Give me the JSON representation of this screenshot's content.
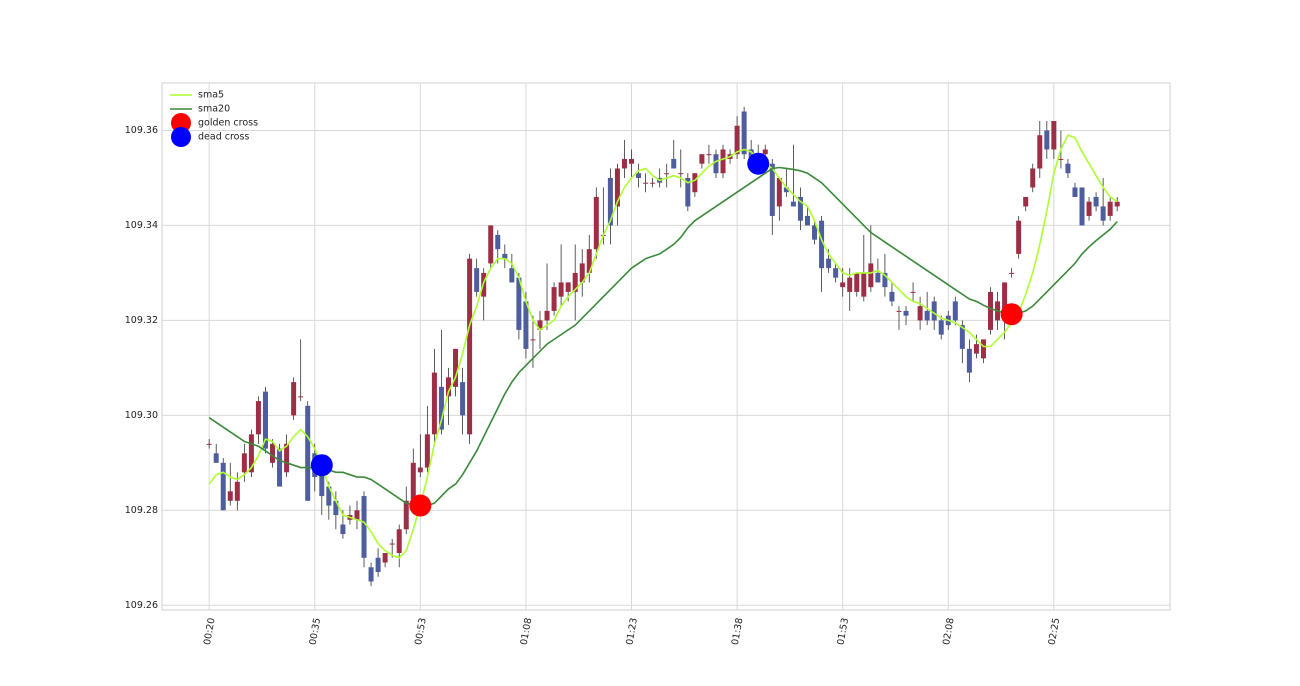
{
  "chart_data": {
    "type": "candlestick",
    "categories": [
      "00:20",
      null,
      null,
      null,
      null,
      null,
      null,
      null,
      null,
      null,
      null,
      null,
      null,
      null,
      null,
      "00:35",
      null,
      null,
      null,
      null,
      null,
      null,
      null,
      null,
      null,
      null,
      null,
      null,
      null,
      null,
      "00:53",
      null,
      null,
      null,
      null,
      null,
      null,
      null,
      null,
      null,
      null,
      null,
      null,
      null,
      null,
      "01:08",
      null,
      null,
      null,
      null,
      null,
      null,
      null,
      null,
      null,
      null,
      null,
      null,
      null,
      null,
      "01:23",
      null,
      null,
      null,
      null,
      null,
      null,
      null,
      null,
      null,
      null,
      null,
      null,
      null,
      null,
      "01:38",
      null,
      null,
      null,
      null,
      null,
      null,
      null,
      null,
      null,
      null,
      null,
      null,
      null,
      null,
      "01:53",
      null,
      null,
      null,
      null,
      null,
      null,
      null,
      null,
      null,
      null,
      null,
      null,
      null,
      null,
      "02:08",
      null,
      null,
      null,
      null,
      null,
      null,
      null,
      null,
      null,
      null,
      null,
      null,
      null,
      null,
      "02:25",
      null,
      null,
      null,
      null,
      null,
      null,
      null,
      null,
      null
    ],
    "ohlc": {
      "open": [
        109.294,
        109.292,
        109.29,
        109.282,
        109.282,
        109.288,
        109.288,
        109.296,
        109.305,
        109.29,
        109.293,
        109.288,
        109.3,
        109.304,
        109.302,
        109.292,
        109.29,
        109.285,
        109.282,
        109.277,
        109.278,
        109.278,
        109.283,
        109.268,
        109.27,
        109.269,
        109.273,
        109.271,
        109.276,
        109.282,
        109.288,
        109.289,
        109.296,
        109.306,
        109.304,
        109.306,
        109.307,
        109.296,
        109.331,
        109.325,
        109.332,
        109.338,
        109.334,
        109.331,
        109.329,
        109.324,
        109.316,
        109.318,
        109.32,
        109.322,
        109.325,
        109.326,
        109.326,
        109.328,
        109.33,
        109.335,
        109.338,
        109.35,
        109.344,
        109.352,
        109.353,
        109.351,
        109.349,
        109.349,
        109.35,
        109.351,
        109.354,
        109.351,
        109.35,
        109.347,
        109.353,
        109.355,
        109.355,
        109.351,
        109.354,
        109.355,
        109.364,
        109.356,
        109.355,
        109.355,
        109.353,
        109.344,
        109.348,
        109.345,
        109.346,
        109.342,
        109.34,
        109.341,
        109.333,
        109.331,
        109.327,
        109.326,
        109.326,
        109.325,
        109.327,
        109.33,
        109.33,
        109.326,
        109.322,
        109.322,
        109.326,
        109.32,
        109.322,
        109.324,
        109.32,
        109.321,
        109.324,
        109.319,
        109.314,
        109.313,
        109.312,
        109.318,
        109.32,
        109.32,
        109.33,
        109.334,
        109.344,
        109.348,
        109.352,
        109.36,
        109.356,
        109.354,
        109.353,
        109.348,
        109.348,
        109.342,
        109.346,
        109.344,
        109.342,
        109.344
      ],
      "high": [
        109.295,
        109.294,
        109.291,
        109.29,
        109.288,
        109.294,
        109.297,
        109.304,
        109.306,
        109.295,
        109.294,
        109.296,
        109.308,
        109.316,
        109.303,
        109.294,
        109.291,
        109.286,
        109.284,
        109.28,
        109.281,
        109.282,
        109.284,
        109.269,
        109.272,
        109.271,
        109.274,
        109.277,
        109.285,
        109.293,
        109.296,
        109.302,
        109.314,
        109.318,
        109.31,
        109.314,
        109.31,
        109.334,
        109.333,
        109.331,
        109.34,
        109.339,
        109.336,
        109.334,
        109.33,
        109.326,
        109.321,
        109.322,
        109.332,
        109.328,
        109.336,
        109.328,
        109.336,
        109.335,
        109.338,
        109.348,
        109.348,
        109.352,
        109.353,
        109.358,
        109.356,
        109.353,
        109.351,
        109.35,
        109.352,
        109.353,
        109.358,
        109.356,
        109.351,
        109.351,
        109.355,
        109.357,
        109.356,
        109.357,
        109.356,
        109.363,
        109.365,
        109.358,
        109.357,
        109.357,
        109.354,
        109.35,
        109.352,
        109.357,
        109.348,
        109.344,
        109.341,
        109.342,
        109.335,
        109.332,
        109.331,
        109.331,
        109.33,
        109.338,
        109.34,
        109.333,
        109.334,
        109.328,
        109.323,
        109.323,
        109.328,
        109.325,
        109.326,
        109.325,
        109.321,
        109.322,
        109.325,
        109.32,
        109.316,
        109.317,
        109.316,
        109.327,
        109.326,
        109.328,
        109.331,
        109.342,
        109.346,
        109.353,
        109.362,
        109.362,
        109.362,
        109.36,
        109.354,
        109.349,
        109.348,
        109.346,
        109.347,
        109.35,
        109.346,
        109.346
      ],
      "low": [
        109.293,
        109.29,
        109.28,
        109.281,
        109.28,
        109.286,
        109.287,
        109.294,
        109.292,
        109.289,
        109.285,
        109.287,
        109.299,
        109.303,
        109.282,
        109.284,
        109.279,
        109.278,
        109.276,
        109.274,
        109.277,
        109.276,
        109.268,
        109.264,
        109.266,
        109.268,
        109.27,
        109.268,
        109.275,
        109.281,
        109.287,
        109.288,
        109.294,
        109.296,
        109.298,
        109.304,
        109.296,
        109.294,
        109.325,
        109.32,
        109.331,
        109.332,
        109.331,
        109.328,
        109.316,
        109.312,
        109.31,
        109.314,
        109.318,
        109.321,
        109.323,
        109.324,
        109.32,
        109.325,
        109.328,
        109.333,
        109.336,
        109.336,
        109.34,
        109.35,
        109.35,
        109.348,
        109.347,
        109.348,
        109.348,
        109.348,
        109.352,
        109.348,
        109.343,
        109.346,
        109.352,
        109.353,
        109.35,
        109.35,
        109.353,
        109.354,
        109.354,
        109.354,
        109.353,
        109.354,
        109.338,
        109.341,
        109.346,
        109.344,
        109.339,
        109.34,
        109.336,
        109.326,
        109.33,
        109.328,
        109.325,
        109.322,
        109.325,
        109.324,
        109.326,
        109.328,
        109.325,
        109.323,
        109.318,
        109.319,
        109.324,
        109.318,
        109.319,
        109.318,
        109.316,
        109.318,
        109.319,
        109.311,
        109.307,
        109.312,
        109.311,
        109.317,
        109.318,
        109.316,
        109.329,
        109.333,
        109.343,
        109.347,
        109.35,
        109.354,
        109.354,
        109.352,
        109.35,
        109.346,
        109.34,
        109.341,
        109.343,
        109.34,
        109.341,
        109.343
      ],
      "close": [
        109.294,
        109.29,
        109.28,
        109.284,
        109.286,
        109.292,
        109.296,
        109.303,
        109.293,
        109.294,
        109.285,
        109.294,
        109.307,
        109.304,
        109.282,
        109.287,
        109.283,
        109.281,
        109.279,
        109.275,
        109.279,
        109.28,
        109.27,
        109.265,
        109.267,
        109.271,
        109.273,
        109.276,
        109.282,
        109.29,
        109.289,
        109.296,
        109.309,
        109.297,
        109.308,
        109.314,
        109.3,
        109.333,
        109.326,
        109.33,
        109.34,
        109.335,
        109.333,
        109.328,
        109.318,
        109.314,
        109.316,
        109.32,
        109.322,
        109.327,
        109.328,
        109.328,
        109.33,
        109.332,
        109.335,
        109.346,
        109.338,
        109.34,
        109.352,
        109.354,
        109.354,
        109.35,
        109.349,
        109.349,
        109.349,
        109.351,
        109.352,
        109.351,
        109.344,
        109.351,
        109.355,
        109.355,
        109.351,
        109.356,
        109.355,
        109.361,
        109.355,
        109.354,
        109.354,
        109.356,
        109.342,
        109.35,
        109.347,
        109.344,
        109.341,
        109.34,
        109.337,
        109.331,
        109.331,
        109.329,
        109.328,
        109.329,
        109.33,
        109.33,
        109.332,
        109.328,
        109.327,
        109.324,
        109.322,
        109.321,
        109.326,
        109.323,
        109.32,
        109.32,
        109.317,
        109.319,
        109.32,
        109.314,
        109.309,
        109.315,
        109.316,
        109.326,
        109.324,
        109.328,
        109.33,
        109.341,
        109.346,
        109.352,
        109.359,
        109.356,
        109.362,
        109.354,
        109.351,
        109.346,
        109.34,
        109.345,
        109.344,
        109.341,
        109.345,
        109.345
      ]
    },
    "up_color": "#9c2f45",
    "down_color": "#4d5d9d",
    "lines": [
      {
        "name": "sma5",
        "color": "#adff2f",
        "values": [
          109.2855,
          109.2875,
          109.288,
          109.287,
          109.2865,
          109.2875,
          109.289,
          109.2915,
          109.295,
          109.2945,
          109.2925,
          109.2935,
          109.2955,
          109.297,
          109.2955,
          109.293,
          109.2895,
          109.285,
          109.282,
          109.279,
          109.2785,
          109.278,
          109.2775,
          109.2755,
          109.273,
          109.2715,
          109.2705,
          109.27,
          109.2715,
          109.276,
          109.281,
          109.287,
          109.294,
          109.299,
          109.305,
          109.308,
          109.313,
          109.319,
          109.323,
          109.328,
          109.331,
          109.333,
          109.333,
          109.332,
          109.329,
          109.324,
          109.32,
          109.318,
          109.319,
          109.32,
          109.323,
          109.325,
          109.3265,
          109.328,
          109.33,
          109.334,
          109.338,
          109.341,
          109.345,
          109.348,
          109.35,
          109.3515,
          109.352,
          109.3505,
          109.3495,
          109.35,
          109.3505,
          109.35,
          109.349,
          109.3495,
          109.351,
          109.3525,
          109.3535,
          109.354,
          109.3545,
          109.3555,
          109.356,
          109.3555,
          109.3535,
          109.353,
          109.352,
          109.35,
          109.348,
          109.3465,
          109.345,
          109.344,
          109.341,
          109.337,
          109.334,
          109.332,
          109.33,
          109.3295,
          109.33,
          109.33,
          109.33,
          109.3305,
          109.3295,
          109.328,
          109.3265,
          109.325,
          109.324,
          109.3235,
          109.3225,
          109.3215,
          109.3205,
          109.32,
          109.3195,
          109.3185,
          109.3175,
          109.316,
          109.3145,
          109.3145,
          109.316,
          109.3175,
          109.3195,
          109.3215,
          109.3255,
          109.33,
          109.336,
          109.343,
          109.351,
          109.356,
          109.359,
          109.3585,
          109.3555,
          109.353,
          109.3505,
          109.348,
          109.346,
          109.345
        ]
      },
      {
        "name": "sma20",
        "color": "#3a8a3a",
        "values": [
          109.2995,
          109.2985,
          109.2975,
          109.2965,
          109.2955,
          109.2945,
          109.294,
          109.2935,
          109.2925,
          109.2915,
          109.2905,
          109.29,
          109.2895,
          109.289,
          109.289,
          109.289,
          109.289,
          109.2885,
          109.288,
          109.288,
          109.2875,
          109.287,
          109.287,
          109.2865,
          109.2855,
          109.2845,
          109.2835,
          109.2825,
          109.2815,
          109.2812,
          109.2812,
          109.281,
          109.2815,
          109.283,
          109.2845,
          109.2855,
          109.2875,
          109.29,
          109.2925,
          109.2955,
          109.2985,
          109.3015,
          109.3045,
          109.307,
          109.309,
          109.3105,
          109.312,
          109.3135,
          109.315,
          109.316,
          109.317,
          109.318,
          109.319,
          109.3205,
          109.322,
          109.3235,
          109.325,
          109.3265,
          109.328,
          109.3295,
          109.331,
          109.332,
          109.333,
          109.3335,
          109.334,
          109.335,
          109.336,
          109.3375,
          109.3395,
          109.341,
          109.342,
          109.343,
          109.344,
          109.345,
          109.346,
          109.347,
          109.348,
          109.349,
          109.35,
          109.351,
          109.352,
          109.3522,
          109.352,
          109.3518,
          109.3515,
          109.351,
          109.35,
          109.349,
          109.3475,
          109.346,
          109.3445,
          109.343,
          109.3415,
          109.34,
          109.3385,
          109.3375,
          109.3365,
          109.3355,
          109.3345,
          109.3335,
          109.3325,
          109.3315,
          109.3305,
          109.3295,
          109.3285,
          109.3275,
          109.3265,
          109.3255,
          109.3245,
          109.324,
          109.3232,
          109.3225,
          109.322,
          109.3215,
          109.3213,
          109.3215,
          109.322,
          109.323,
          109.3245,
          109.326,
          109.3275,
          109.329,
          109.3305,
          109.332,
          109.334,
          109.3355,
          109.3368,
          109.338,
          109.3392,
          109.3408
        ]
      }
    ],
    "markers": [
      {
        "name": "golden cross",
        "color": "#ff0000",
        "x": [
          30,
          114
        ],
        "values": [
          109.281,
          109.3213
        ]
      },
      {
        "name": "dead cross",
        "color": "#0000ff",
        "x": [
          16,
          78
        ],
        "values": [
          109.2895,
          109.353
        ]
      }
    ],
    "xlim": [
      -6.7,
      136.5
    ],
    "ylim": [
      109.259,
      109.37
    ],
    "yticks": [
      109.26,
      109.28,
      {
        "value": 109.3,
        "label": "109.30"
      },
      109.32,
      109.34,
      109.36
    ],
    "grid": true,
    "legend": "upper left"
  }
}
